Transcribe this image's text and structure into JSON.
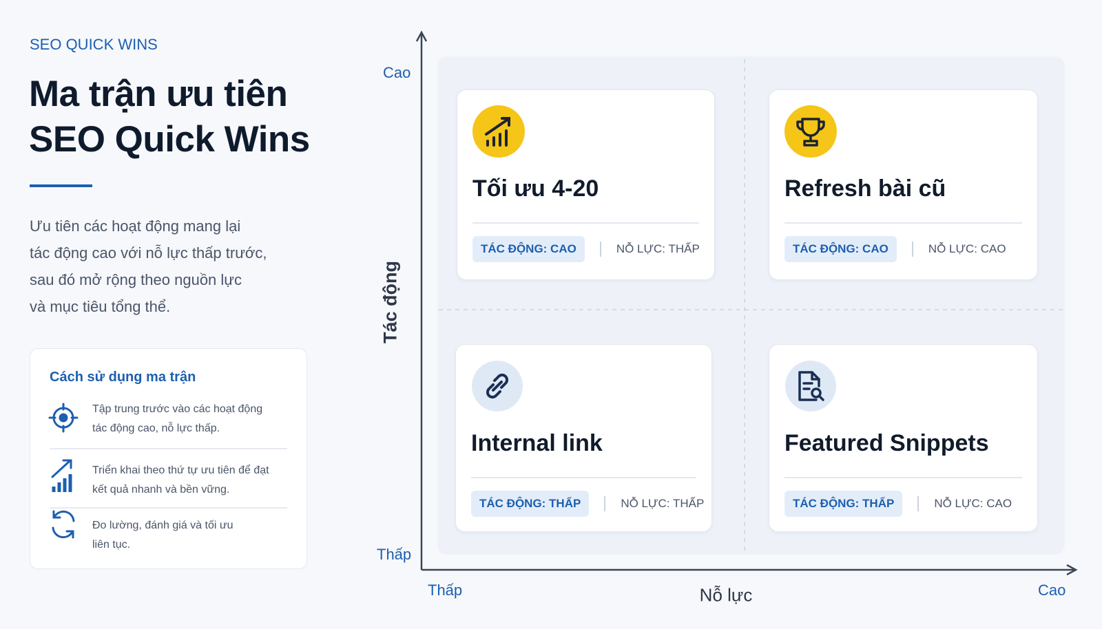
{
  "header": {
    "eyebrow": "SEO QUICK WINS",
    "title": [
      "Ma trận ưu tiên",
      "SEO Quick Wins"
    ],
    "description": [
      "Ưu tiên các hoạt động mang lại",
      "tác động cao với nỗ lực thấp trước,",
      "sau đó mở rộng theo nguồn lực",
      "và mục tiêu tổng thể."
    ]
  },
  "guide": {
    "title": "Cách sử dụng ma trận",
    "items": [
      [
        "Tập trung trước vào các hoạt động",
        "tác động cao, nỗ lực thấp."
      ],
      [
        "Triển khai theo thứ tự ưu tiên để đạt",
        "kết quả nhanh và bền vững."
      ],
      [
        "Đo lường, đánh giá và tối ưu",
        "liên tục."
      ]
    ]
  },
  "axes": {
    "y_label": "Tác động",
    "y_high": "Cao",
    "y_low": "Thấp",
    "x_label": "Nỗ lực",
    "x_low": "Thấp",
    "x_high": "Cao"
  },
  "quadrants": [
    {
      "title": "Tối ưu 4-20",
      "impact": "TÁC ĐỘNG: CAO",
      "effort": "NỖ LỰC: THẤP"
    },
    {
      "title": "Refresh bài cũ",
      "impact": "TÁC ĐỘNG: CAO",
      "effort": "NỖ LỰC: CAO"
    },
    {
      "title": "Internal link",
      "impact": "TÁC ĐỘNG: THẤP",
      "effort": "NỖ LỰC: THẤP"
    },
    {
      "title": "Featured Snippets",
      "impact": "TÁC ĐỘNG: THẤP",
      "effort": "NỖ LỰC: CAO"
    }
  ]
}
